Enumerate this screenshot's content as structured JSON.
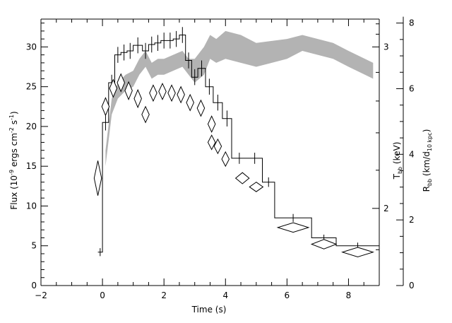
{
  "chart_data": {
    "type": "line",
    "xlabel": "Time (s)",
    "ylabel_left": {
      "main": "Flux (10",
      "exp": "-9",
      "rest1": " ergs cm",
      "exp2": "-2",
      "rest2": " s",
      "exp3": "-1",
      "close": ")"
    },
    "ylabel_right_T": {
      "main": "T",
      "sub": "bb",
      "rest": " (keV)"
    },
    "ylabel_right_R": {
      "main": "R",
      "sub": "bb",
      "rest": " (km/d",
      "sub2": "10 kpc",
      "close": ")"
    },
    "xlim": [
      -2,
      9
    ],
    "ylim": [
      0,
      33.5
    ],
    "xticks": [
      -2,
      0,
      2,
      4,
      6,
      8
    ],
    "yticks": [
      0,
      5,
      10,
      15,
      20,
      25,
      30
    ],
    "right_T_ticks": [
      {
        "label": "3",
        "flux": 30.0
      },
      {
        "label": "2",
        "flux": 9.7
      }
    ],
    "right_R_ticks": [
      {
        "label": "8",
        "flux": 33.0
      },
      {
        "label": "6",
        "flux": 24.75
      },
      {
        "label": "4",
        "flux": 16.5
      },
      {
        "label": "2",
        "flux": 8.25
      },
      {
        "label": "0",
        "flux": 0
      }
    ],
    "flux_step": {
      "edges": [
        -0.15,
        0.0,
        0.2,
        0.4,
        0.6,
        0.8,
        1.0,
        1.3,
        1.5,
        1.7,
        1.9,
        2.1,
        2.3,
        2.5,
        2.7,
        2.9,
        3.1,
        3.35,
        3.6,
        3.9,
        4.2,
        4.7,
        5.2,
        5.6,
        6.8,
        7.6,
        9.0
      ],
      "values": [
        4.2,
        20.5,
        25.5,
        29.0,
        29.3,
        29.5,
        30.2,
        29.5,
        30.3,
        30.5,
        30.8,
        30.8,
        31.0,
        31.5,
        28.3,
        26.2,
        27.3,
        25.0,
        23.0,
        21.0,
        16.0,
        16.0,
        13.0,
        8.5,
        6.0,
        5.0
      ],
      "errors": [
        0.5,
        1.0,
        1.0,
        1.0,
        1.0,
        1.0,
        1.0,
        1.0,
        1.0,
        1.0,
        1.0,
        1.0,
        1.0,
        1.0,
        1.0,
        1.0,
        1.0,
        1.0,
        1.0,
        1.0,
        0.7,
        0.7,
        0.6,
        0.5,
        0.4,
        0.4
      ]
    },
    "temperature_diamonds": [
      {
        "x": -0.15,
        "y": 13.5,
        "dx": 0.12,
        "dy": 2.2
      },
      {
        "x": 0.1,
        "y": 22.5,
        "dx": 0.12,
        "dy": 1.1
      },
      {
        "x": 0.35,
        "y": 24.8,
        "dx": 0.12,
        "dy": 1.1
      },
      {
        "x": 0.6,
        "y": 25.5,
        "dx": 0.12,
        "dy": 1.1
      },
      {
        "x": 0.85,
        "y": 24.5,
        "dx": 0.12,
        "dy": 1.1
      },
      {
        "x": 1.15,
        "y": 23.5,
        "dx": 0.12,
        "dy": 1.1
      },
      {
        "x": 1.4,
        "y": 21.5,
        "dx": 0.12,
        "dy": 1.0
      },
      {
        "x": 1.65,
        "y": 24.2,
        "dx": 0.12,
        "dy": 1.0
      },
      {
        "x": 1.95,
        "y": 24.4,
        "dx": 0.12,
        "dy": 1.0
      },
      {
        "x": 2.25,
        "y": 24.2,
        "dx": 0.12,
        "dy": 1.0
      },
      {
        "x": 2.55,
        "y": 24.0,
        "dx": 0.12,
        "dy": 1.0
      },
      {
        "x": 2.85,
        "y": 23.0,
        "dx": 0.12,
        "dy": 1.0
      },
      {
        "x": 3.2,
        "y": 22.3,
        "dx": 0.12,
        "dy": 1.0
      },
      {
        "x": 3.55,
        "y": 20.3,
        "dx": 0.12,
        "dy": 1.0
      },
      {
        "x": 3.55,
        "y": 18.0,
        "dx": 0.12,
        "dy": 0.9
      },
      {
        "x": 3.75,
        "y": 17.5,
        "dx": 0.12,
        "dy": 0.9
      },
      {
        "x": 4.0,
        "y": 15.9,
        "dx": 0.12,
        "dy": 0.9
      },
      {
        "x": 4.55,
        "y": 13.5,
        "dx": 0.22,
        "dy": 0.7
      },
      {
        "x": 5.0,
        "y": 12.4,
        "dx": 0.22,
        "dy": 0.6
      },
      {
        "x": 6.2,
        "y": 7.3,
        "dx": 0.5,
        "dy": 0.6
      },
      {
        "x": 7.2,
        "y": 5.2,
        "dx": 0.4,
        "dy": 0.6
      },
      {
        "x": 8.3,
        "y": 4.2,
        "dx": 0.5,
        "dy": 0.6
      }
    ],
    "radius_band": {
      "x": [
        0.1,
        0.3,
        0.5,
        0.75,
        1.0,
        1.2,
        1.4,
        1.6,
        1.8,
        2.0,
        2.3,
        2.6,
        2.8,
        3.0,
        3.3,
        3.5,
        3.7,
        4.0,
        4.5,
        5.0,
        6.0,
        6.5,
        7.5,
        8.0,
        8.8
      ],
      "lower": [
        15.0,
        21.5,
        23.5,
        24.5,
        25.0,
        26.5,
        27.5,
        26.0,
        26.5,
        26.5,
        27.0,
        27.5,
        26.5,
        25.5,
        26.5,
        28.5,
        28.0,
        28.5,
        28.0,
        27.5,
        28.5,
        29.5,
        28.5,
        27.5,
        26.0
      ],
      "upper": [
        17.0,
        23.5,
        25.5,
        26.5,
        27.0,
        28.5,
        29.5,
        28.0,
        28.5,
        28.5,
        29.0,
        29.5,
        28.5,
        28.5,
        30.0,
        31.5,
        31.0,
        32.0,
        31.5,
        30.5,
        31.0,
        31.5,
        30.5,
        29.5,
        28.0
      ]
    },
    "band_color": "#b3b3b3"
  }
}
